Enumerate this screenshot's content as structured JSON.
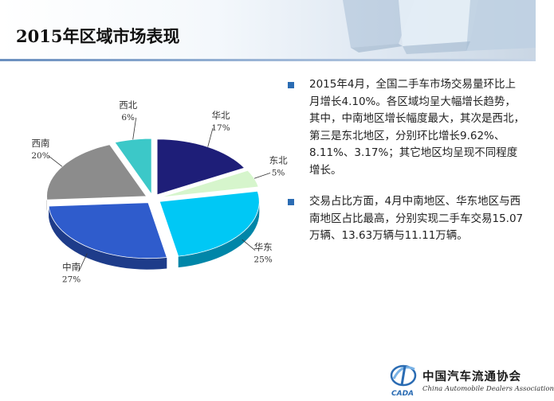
{
  "header": {
    "title": "2015年区域市场表现"
  },
  "chart_data": {
    "type": "pie",
    "title": "",
    "slices": [
      {
        "name": "华北",
        "value": 17,
        "label": "17%",
        "color": "#1e1e78",
        "side": "#121250"
      },
      {
        "name": "东北",
        "value": 5,
        "label": "5%",
        "color": "#d6f5cc",
        "side": "#9fbf96"
      },
      {
        "name": "华东",
        "value": 25,
        "label": "25%",
        "color": "#00c8f5",
        "side": "#0086a8"
      },
      {
        "name": "中南",
        "value": 27,
        "label": "27%",
        "color": "#2f5ccc",
        "side": "#1e3c8a"
      },
      {
        "name": "西南",
        "value": 20,
        "label": "20%",
        "color": "#8c8c8c",
        "side": "#3c3c3c"
      },
      {
        "name": "西北",
        "value": 6,
        "label": "6%",
        "color": "#3cc8c8",
        "side": "#248c8c"
      }
    ]
  },
  "bullets": [
    {
      "text": "2015年4月，全国二手车市场交易量环比上月增长4.10%。各区域均呈大幅增长趋势，其中，中南地区增长幅度最大，其次是西北，第三是东北地区，分别环比增长9.62%、8.11%、3.17%；其它地区均呈现不同程度增长。"
    },
    {
      "text": "交易占比方面，4月中南地区、华东地区与西南地区占比最高，分别实现二手车交易15.07万辆、13.63万辆与11.11万辆。"
    }
  ],
  "logo": {
    "abbr": "CADA",
    "name_cn": "中国汽车流通协会",
    "name_en": "China Automobile Dealers Association"
  },
  "colors": {
    "accent": "#2b6cb3",
    "header_line": "#6a8fbf"
  }
}
